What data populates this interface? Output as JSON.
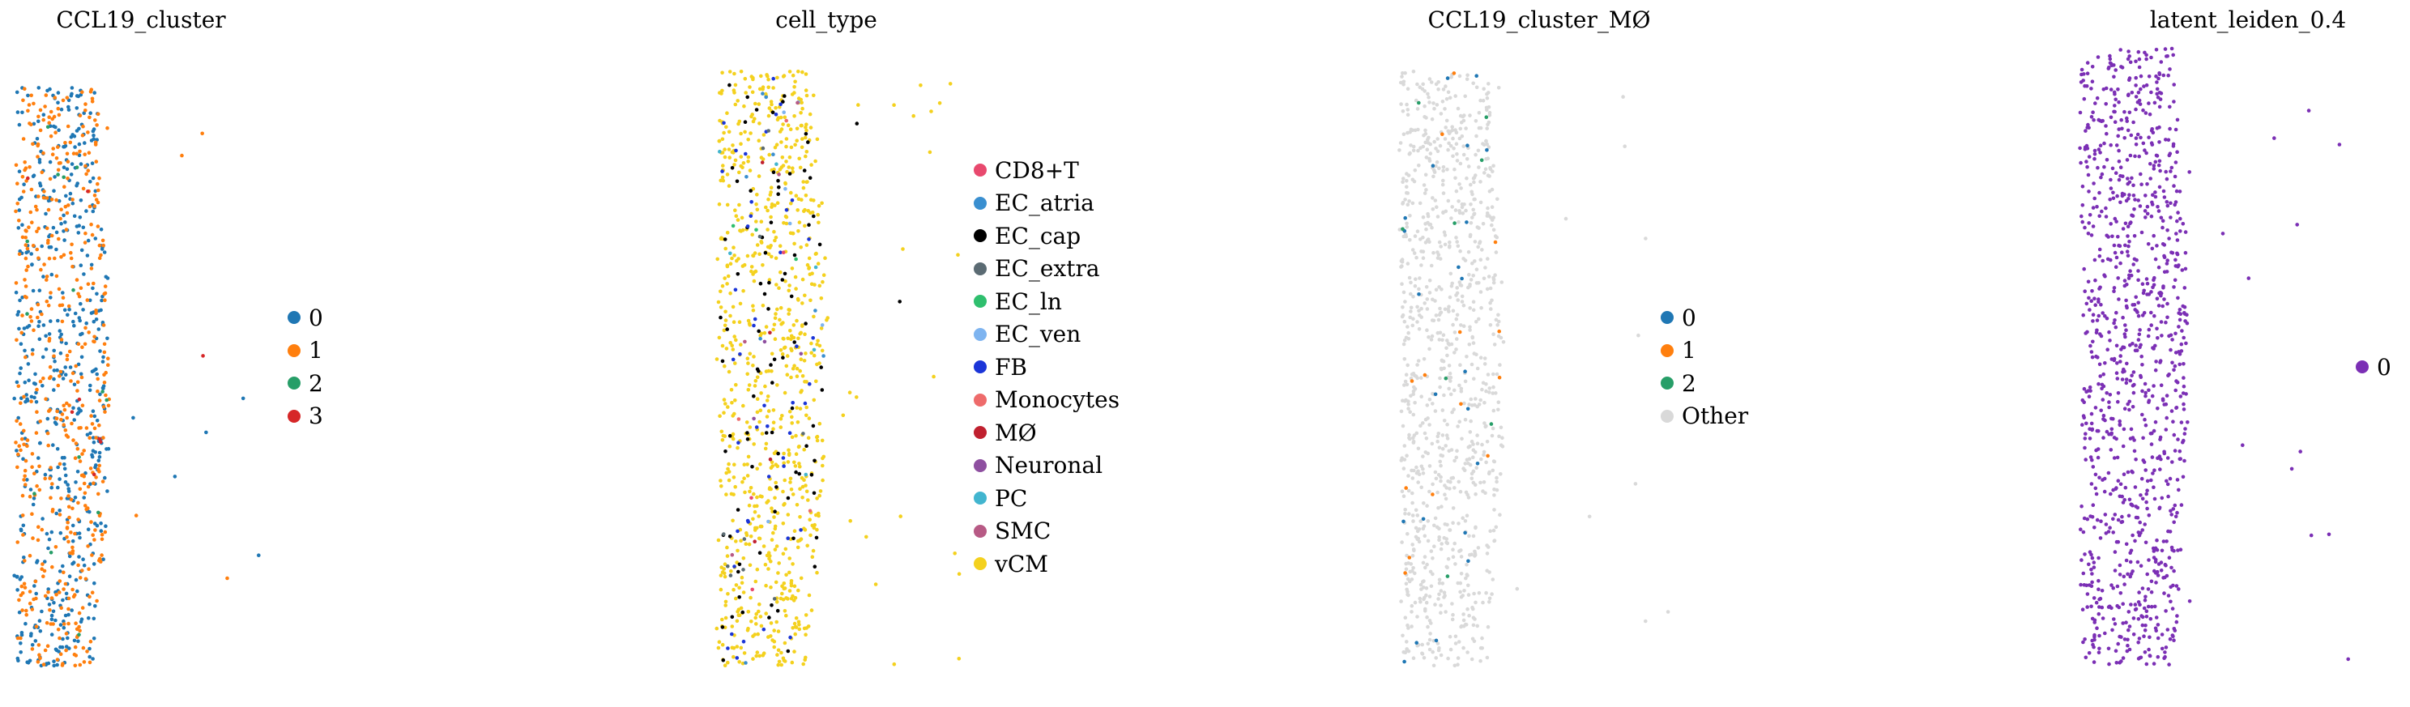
{
  "chart_data": [
    {
      "type": "scatter",
      "title": "CCL19_cluster",
      "legend_position": "right",
      "series": [
        {
          "name": "0",
          "color": "#1f77b4",
          "count": 520
        },
        {
          "name": "1",
          "color": "#ff7f0e",
          "count": 480
        },
        {
          "name": "2",
          "color": "#279e68",
          "count": 14
        },
        {
          "name": "3",
          "color": "#d62728",
          "count": 8
        }
      ]
    },
    {
      "type": "scatter",
      "title": "cell_type",
      "legend_position": "right",
      "series": [
        {
          "name": "CD8+T",
          "color": "#e8496e",
          "count": 3
        },
        {
          "name": "EC_atria",
          "color": "#3a8fd0",
          "count": 8
        },
        {
          "name": "EC_cap",
          "color": "#000000",
          "count": 90
        },
        {
          "name": "EC_extra",
          "color": "#5b6b73",
          "count": 10
        },
        {
          "name": "EC_ln",
          "color": "#2fbf6e",
          "count": 3
        },
        {
          "name": "EC_ven",
          "color": "#7eb4f0",
          "count": 6
        },
        {
          "name": "FB",
          "color": "#1b35d8",
          "count": 45
        },
        {
          "name": "Monocytes",
          "color": "#ee6b6b",
          "count": 3
        },
        {
          "name": "MØ",
          "color": "#c0202f",
          "count": 4
        },
        {
          "name": "Neuronal",
          "color": "#8e4fa0",
          "count": 3
        },
        {
          "name": "PC",
          "color": "#42b5cf",
          "count": 6
        },
        {
          "name": "SMC",
          "color": "#b75a85",
          "count": 4
        },
        {
          "name": "vCM",
          "color": "#f4d11e",
          "count": 840
        }
      ]
    },
    {
      "type": "scatter",
      "title": "CCL19_cluster_MØ",
      "legend_position": "right",
      "series": [
        {
          "name": "0",
          "color": "#1f77b4",
          "count": 22
        },
        {
          "name": "1",
          "color": "#ff7f0e",
          "count": 14
        },
        {
          "name": "2",
          "color": "#279e68",
          "count": 8
        },
        {
          "name": "Other",
          "color": "#d9d9d9",
          "count": 980
        }
      ]
    },
    {
      "type": "scatter",
      "title": "latent_leiden_0.4",
      "legend_position": "right",
      "series": [
        {
          "name": "0",
          "color": "#7b2fb5",
          "count": 1020
        }
      ]
    }
  ]
}
